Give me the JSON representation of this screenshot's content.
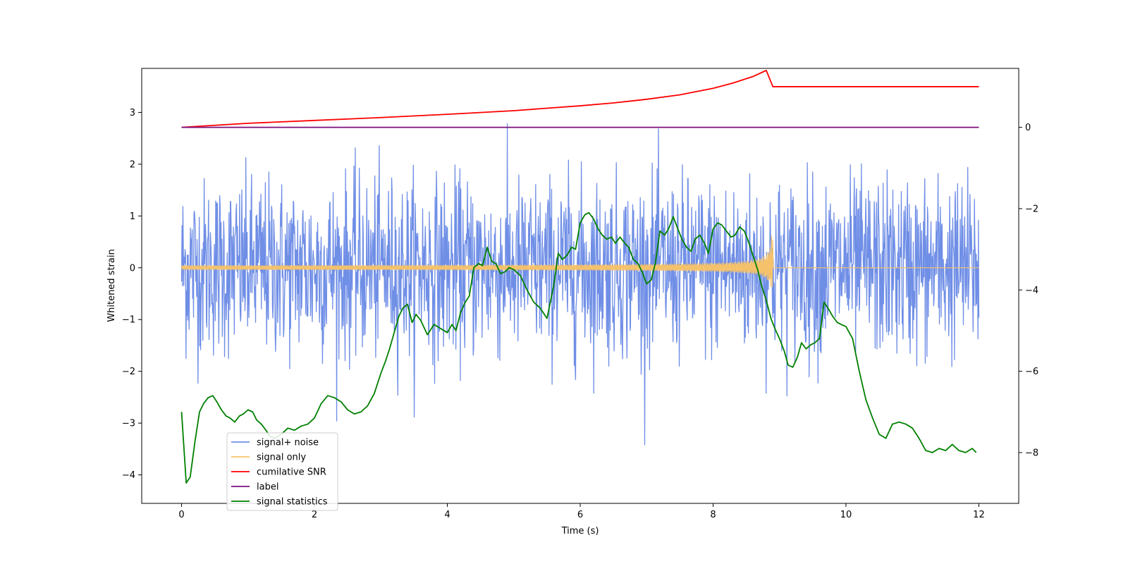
{
  "chart_data": {
    "type": "line",
    "title": "",
    "xlabel": "Time (s)",
    "ylabel": "Whitened strain",
    "y2label": "",
    "xlim": [
      -0.6,
      12.6
    ],
    "ylim": [
      -4.55,
      3.85
    ],
    "y2lim": [
      -9.25,
      1.45
    ],
    "xticks": [
      0,
      2,
      4,
      6,
      8,
      10,
      12
    ],
    "yticks": [
      -4,
      -3,
      -2,
      -1,
      0,
      1,
      2,
      3
    ],
    "y2ticks": [
      -8,
      -6,
      -4,
      -2,
      0
    ],
    "xtick_labels": [
      "0",
      "2",
      "4",
      "6",
      "8",
      "10",
      "12"
    ],
    "ytick_labels": [
      "−4",
      "−3",
      "−2",
      "−1",
      "0",
      "1",
      "2",
      "3"
    ],
    "y2tick_labels": [
      "−8",
      "−6",
      "−4",
      "−2",
      "0"
    ],
    "grid": false,
    "legend_position": "lower-left",
    "series": [
      {
        "name": "signal+ noise",
        "axis": "left",
        "color": "#6f8ee6",
        "kind": "noise",
        "description_params": {
          "x_range": [
            0,
            12
          ],
          "sigma": 0.85,
          "n_points": 1800
        },
        "x": [],
        "y": []
      },
      {
        "name": "signal only",
        "axis": "left",
        "color": "#f5c26b",
        "kind": "chirp",
        "description_params": {
          "start": 0,
          "merger": 8.9,
          "end": 12,
          "amp_start": 0.02,
          "amp_peak": 0.45,
          "negative_amp_peak": 0.38
        },
        "x": [],
        "y": []
      },
      {
        "name": "cumilative SNR",
        "axis": "right",
        "color": "#ff0000",
        "x": [
          0,
          1,
          2,
          3,
          4,
          5,
          6,
          6.5,
          7,
          7.5,
          8,
          8.3,
          8.6,
          8.8,
          8.9,
          9,
          12
        ],
        "y": [
          0,
          0.1,
          0.17,
          0.24,
          0.32,
          0.41,
          0.53,
          0.6,
          0.69,
          0.8,
          0.96,
          1.09,
          1.25,
          1.4,
          1.0,
          1.0,
          1.0
        ]
      },
      {
        "name": "label",
        "axis": "right",
        "color": "#7b0f7b",
        "x": [
          0,
          12
        ],
        "y": [
          0,
          0
        ]
      },
      {
        "name": "signal statistics",
        "axis": "right",
        "color": "#008000",
        "x": [
          0,
          0.07,
          0.13,
          0.2,
          0.27,
          0.33,
          0.4,
          0.47,
          0.53,
          0.6,
          0.67,
          0.73,
          0.8,
          0.87,
          0.93,
          1.0,
          1.07,
          1.13,
          1.2,
          1.27,
          1.33,
          1.4,
          1.5,
          1.6,
          1.7,
          1.8,
          1.9,
          2.0,
          2.1,
          2.2,
          2.3,
          2.4,
          2.5,
          2.6,
          2.7,
          2.8,
          2.9,
          3.0,
          3.07,
          3.13,
          3.2,
          3.27,
          3.33,
          3.4,
          3.47,
          3.53,
          3.6,
          3.7,
          3.8,
          3.9,
          4.0,
          4.07,
          4.13,
          4.2,
          4.27,
          4.33,
          4.4,
          4.47,
          4.53,
          4.6,
          4.67,
          4.73,
          4.8,
          4.87,
          4.93,
          5.0,
          5.1,
          5.2,
          5.3,
          5.4,
          5.5,
          5.6,
          5.67,
          5.73,
          5.8,
          5.87,
          5.93,
          6.0,
          6.07,
          6.13,
          6.2,
          6.27,
          6.33,
          6.4,
          6.47,
          6.53,
          6.6,
          6.67,
          6.73,
          6.8,
          6.87,
          6.93,
          7.0,
          7.07,
          7.13,
          7.2,
          7.27,
          7.33,
          7.4,
          7.47,
          7.53,
          7.6,
          7.67,
          7.73,
          7.8,
          7.87,
          7.93,
          8.0,
          8.07,
          8.13,
          8.2,
          8.27,
          8.33,
          8.4,
          8.47,
          8.53,
          8.6,
          8.67,
          8.73,
          8.8,
          8.87,
          8.93,
          9.0,
          9.07,
          9.13,
          9.2,
          9.27,
          9.33,
          9.4,
          9.47,
          9.53,
          9.6,
          9.67,
          9.73,
          9.8,
          9.87,
          9.93,
          10.0,
          10.1,
          10.2,
          10.3,
          10.4,
          10.5,
          10.6,
          10.7,
          10.8,
          10.9,
          11.0,
          11.1,
          11.2,
          11.3,
          11.4,
          11.5,
          11.6,
          11.7,
          11.8,
          11.9,
          11.96
        ],
        "y": [
          -7.0,
          -8.75,
          -8.6,
          -7.75,
          -7.0,
          -6.8,
          -6.65,
          -6.6,
          -6.75,
          -6.95,
          -7.1,
          -7.15,
          -7.25,
          -7.1,
          -7.05,
          -6.95,
          -7.0,
          -7.2,
          -7.3,
          -7.45,
          -7.6,
          -7.65,
          -7.55,
          -7.4,
          -7.45,
          -7.35,
          -7.3,
          -7.15,
          -6.8,
          -6.6,
          -6.65,
          -6.75,
          -6.95,
          -7.05,
          -7.0,
          -6.85,
          -6.55,
          -6.05,
          -5.75,
          -5.45,
          -5.05,
          -4.65,
          -4.45,
          -4.35,
          -4.8,
          -4.6,
          -4.75,
          -5.1,
          -4.85,
          -4.95,
          -5.05,
          -4.85,
          -5.0,
          -4.55,
          -4.3,
          -4.15,
          -3.45,
          -3.35,
          -3.4,
          -2.95,
          -3.3,
          -3.35,
          -3.6,
          -3.55,
          -3.45,
          -3.5,
          -3.65,
          -4.0,
          -4.3,
          -4.45,
          -4.7,
          -3.9,
          -3.1,
          -3.25,
          -3.15,
          -2.95,
          -3.0,
          -2.35,
          -2.15,
          -2.1,
          -2.25,
          -2.5,
          -2.65,
          -2.75,
          -2.7,
          -2.85,
          -2.7,
          -2.85,
          -2.95,
          -3.25,
          -3.35,
          -3.55,
          -3.85,
          -3.75,
          -3.35,
          -2.55,
          -2.65,
          -2.5,
          -2.2,
          -2.5,
          -2.75,
          -2.95,
          -3.05,
          -2.75,
          -2.65,
          -2.85,
          -3.1,
          -2.5,
          -2.35,
          -2.4,
          -2.55,
          -2.7,
          -2.65,
          -2.45,
          -2.55,
          -2.8,
          -3.15,
          -3.5,
          -3.9,
          -4.25,
          -4.7,
          -4.95,
          -5.2,
          -5.5,
          -5.85,
          -5.9,
          -5.65,
          -5.3,
          -5.45,
          -5.35,
          -5.3,
          -5.2,
          -4.3,
          -4.45,
          -4.65,
          -4.8,
          -4.85,
          -4.9,
          -5.2,
          -6.0,
          -6.7,
          -7.15,
          -7.55,
          -7.65,
          -7.3,
          -7.25,
          -7.3,
          -7.4,
          -7.65,
          -7.95,
          -8.0,
          -7.9,
          -7.95,
          -7.8,
          -7.95,
          -8.0,
          -7.9,
          -8.0
        ],
        "note": "right axis, approximate trace"
      }
    ]
  },
  "legend": {
    "items": [
      {
        "label": "signal+ noise",
        "color": "#6f8ee6"
      },
      {
        "label": "signal only",
        "color": "#f5c26b"
      },
      {
        "label": "cumilative SNR",
        "color": "#ff0000"
      },
      {
        "label": "label",
        "color": "#7b0f7b"
      },
      {
        "label": "signal statistics",
        "color": "#008000"
      }
    ]
  }
}
